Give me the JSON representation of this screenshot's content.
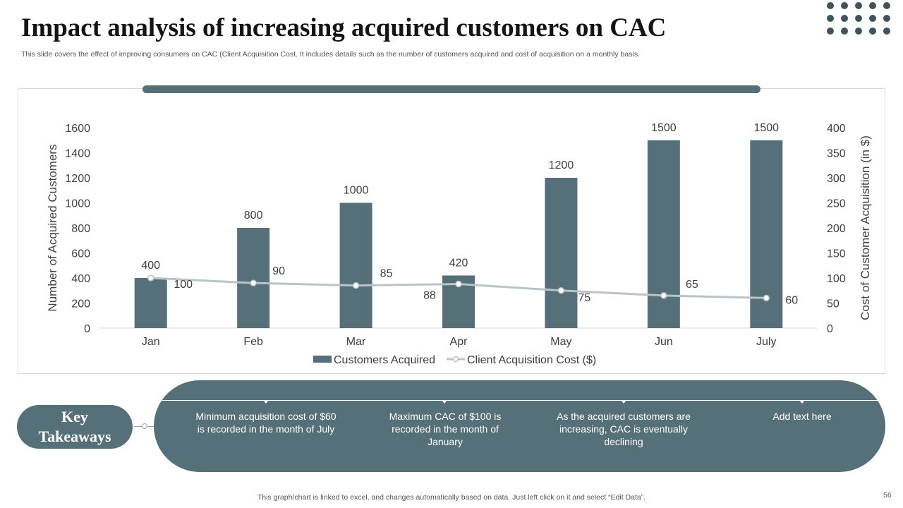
{
  "slide": {
    "title": "Impact analysis of increasing acquired customers on CAC",
    "subtitle": "This slide covers the effect of improving consumers on CAC (Client Acquisition Cost. It includes details such as the number of customers acquired and cost of acquisition on a monthly basis.",
    "footer": "This graph/chart is linked to excel,  and changes automatically based on data. Just left click on it and select “Edit Data”.",
    "page_number": "56"
  },
  "colors": {
    "accent": "#56707a",
    "line": "#b8c4c9",
    "dots": "#3f535d"
  },
  "chart_data": {
    "type": "bar",
    "categories": [
      "Jan",
      "Feb",
      "Mar",
      "Apr",
      "May",
      "Jun",
      "July"
    ],
    "series": [
      {
        "name": "Customers Acquired",
        "type": "bar",
        "axis": "left",
        "values": [
          400,
          800,
          1000,
          420,
          1200,
          1500,
          1500
        ]
      },
      {
        "name": "Client Acquisition Cost ($)",
        "type": "line",
        "axis": "right",
        "values": [
          100,
          90,
          85,
          88,
          75,
          65,
          60
        ]
      }
    ],
    "ylabel": "Number of Acquired Customers",
    "ylabel_right": "Cost of Customer Acquisition (in $)",
    "ylim": [
      0,
      1600
    ],
    "ylim_right": [
      0,
      400
    ],
    "yticks": [
      0,
      200,
      400,
      600,
      800,
      1000,
      1200,
      1400,
      1600
    ],
    "yticks_right": [
      0,
      50,
      100,
      150,
      200,
      250,
      300,
      350,
      400
    ],
    "legend_position": "bottom"
  },
  "takeaways": {
    "heading": "Key Takeaways",
    "items": [
      "Minimum acquisition cost of $60 is recorded in the month of July",
      "Maximum CAC of $100 is recorded in the month of January",
      "As the acquired customers are increasing, CAC is eventually declining",
      "Add text here"
    ]
  }
}
